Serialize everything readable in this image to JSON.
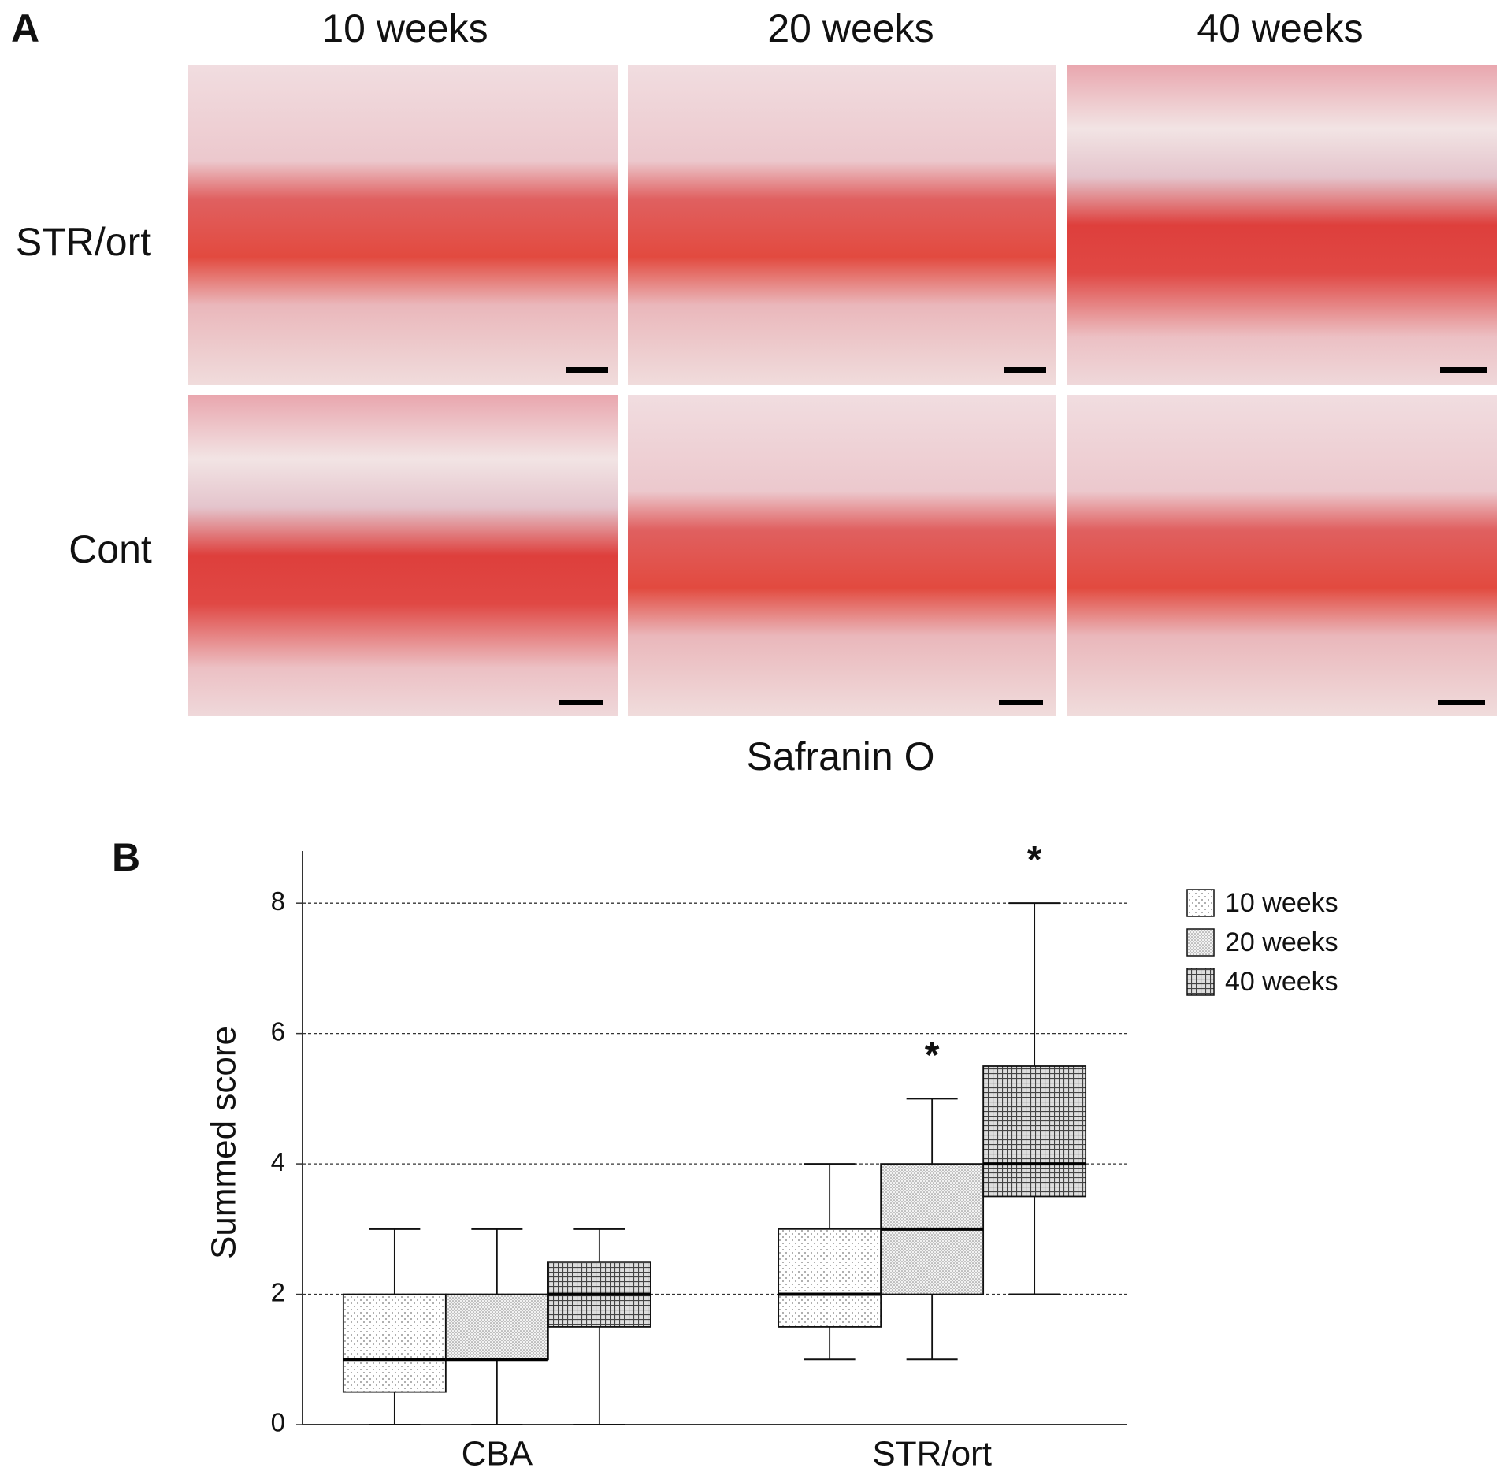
{
  "panel_a": {
    "label": "A",
    "columns": [
      "10 weeks",
      "20 weeks",
      "40 weeks"
    ],
    "rows": [
      "STR/ort",
      "Cont"
    ],
    "caption": "Safranin O"
  },
  "chart_data": {
    "type": "box",
    "panel_label": "B",
    "y_label": "Summed score",
    "categories": [
      "CBA",
      "STR/ort"
    ],
    "ylim": [
      0,
      8.8
    ],
    "yticks": [
      0,
      2,
      4,
      6,
      8
    ],
    "grid": true,
    "legend": "right",
    "series": [
      {
        "name": "10 weeks",
        "pattern": "dots",
        "color": "#ffffff",
        "min": [
          0,
          1
        ],
        "q1": [
          0.5,
          1.5
        ],
        "median": [
          1,
          2
        ],
        "q3": [
          2,
          3
        ],
        "max": [
          3,
          4
        ],
        "markers": [
          null,
          null
        ]
      },
      {
        "name": "20 weeks",
        "pattern": "fine",
        "color": "#ececec",
        "min": [
          0,
          1
        ],
        "q1": [
          1,
          2
        ],
        "median": [
          1,
          3
        ],
        "q3": [
          2,
          4
        ],
        "max": [
          3,
          5
        ],
        "markers": [
          null,
          "*"
        ]
      },
      {
        "name": "40 weeks",
        "pattern": "grid",
        "color": "#d0d0d0",
        "min": [
          0,
          2
        ],
        "q1": [
          1.5,
          3.5
        ],
        "median": [
          2,
          4
        ],
        "q3": [
          2.5,
          5.5
        ],
        "max": [
          3,
          8
        ],
        "markers": [
          null,
          "*"
        ]
      }
    ]
  }
}
